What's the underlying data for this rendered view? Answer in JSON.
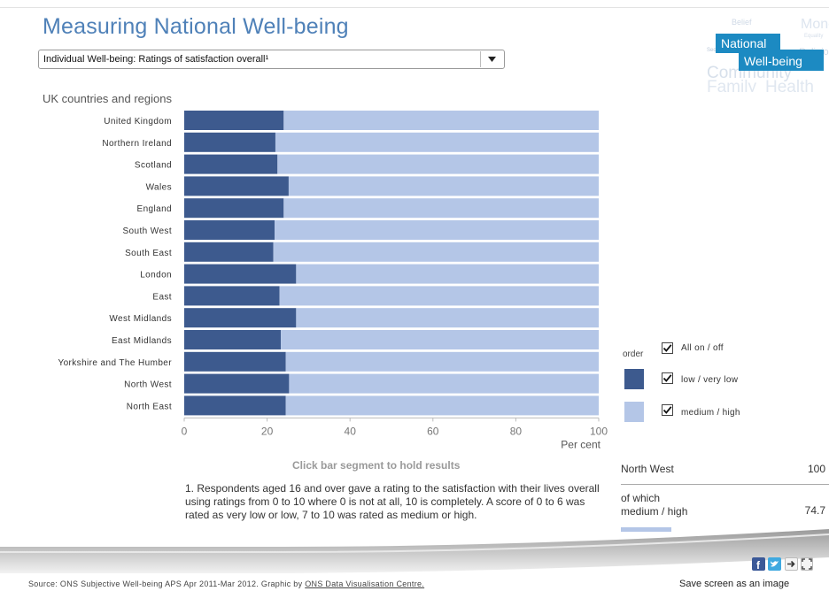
{
  "header": {
    "title": "Measuring National Well-being",
    "dropdown_value": "Individual Well-being: Ratings of satisfaction overall¹",
    "subtitle": "UK countries and regions"
  },
  "logo": {
    "line1": "National",
    "line2": "Well-being",
    "background_words": [
      "Belief",
      "Money",
      "Equality",
      "Religion",
      "Security",
      "Community",
      "Family",
      "Health"
    ]
  },
  "chart_data": {
    "type": "bar",
    "orientation": "horizontal",
    "stacked": true,
    "categories": [
      "United Kingdom",
      "Northern Ireland",
      "Scotland",
      "Wales",
      "England",
      "South West",
      "South East",
      "London",
      "East",
      "West Midlands",
      "East Midlands",
      "Yorkshire and The Humber",
      "North West",
      "North East"
    ],
    "series": [
      {
        "name": "low / very low",
        "color": "#3d5a8e",
        "values": [
          24,
          22,
          22.5,
          25.2,
          24,
          21.8,
          21.5,
          27,
          23,
          27,
          23.3,
          24.5,
          25.3,
          24.5
        ]
      },
      {
        "name": "medium / high",
        "color": "#b4c6e7",
        "values": [
          76,
          78,
          77.5,
          74.8,
          76,
          78.2,
          78.5,
          73,
          77,
          73,
          76.7,
          75.5,
          74.7,
          75.5
        ]
      }
    ],
    "x_ticks": [
      "0",
      "20",
      "40",
      "60",
      "80",
      "100"
    ],
    "xlim": [
      0,
      100
    ],
    "xlabel": "Per cent",
    "grid": false
  },
  "hint": "Click bar segment to hold results",
  "footnote": "1. Respondents aged 16 and over gave a rating to the satisfaction with their lives overall using ratings from 0 to 10 where 0 is not at all, 10 is completely. A score of 0 to 6 was rated as very low or low, 7 to 10 was rated as medium or high.",
  "legend": {
    "order_label": "order",
    "all_label": "All on / off",
    "low_label": "low / very low",
    "high_label": "medium / high",
    "low_color": "#3d5a8e",
    "high_color": "#b4c6e7"
  },
  "info": {
    "region": "North West",
    "total": "100",
    "of_which_label": "of which medium / high",
    "of_which_value": "74.7"
  },
  "footer": {
    "source_text": "Source: ONS Subjective Well-being APS Apr 2011-Mar 2012. Graphic by ",
    "source_link": "ONS Data Visualisation Centre.",
    "save_label": "Save screen as an image",
    "icons": [
      "facebook-icon",
      "twitter-icon",
      "arrow-icon",
      "fullscreen-icon"
    ]
  }
}
